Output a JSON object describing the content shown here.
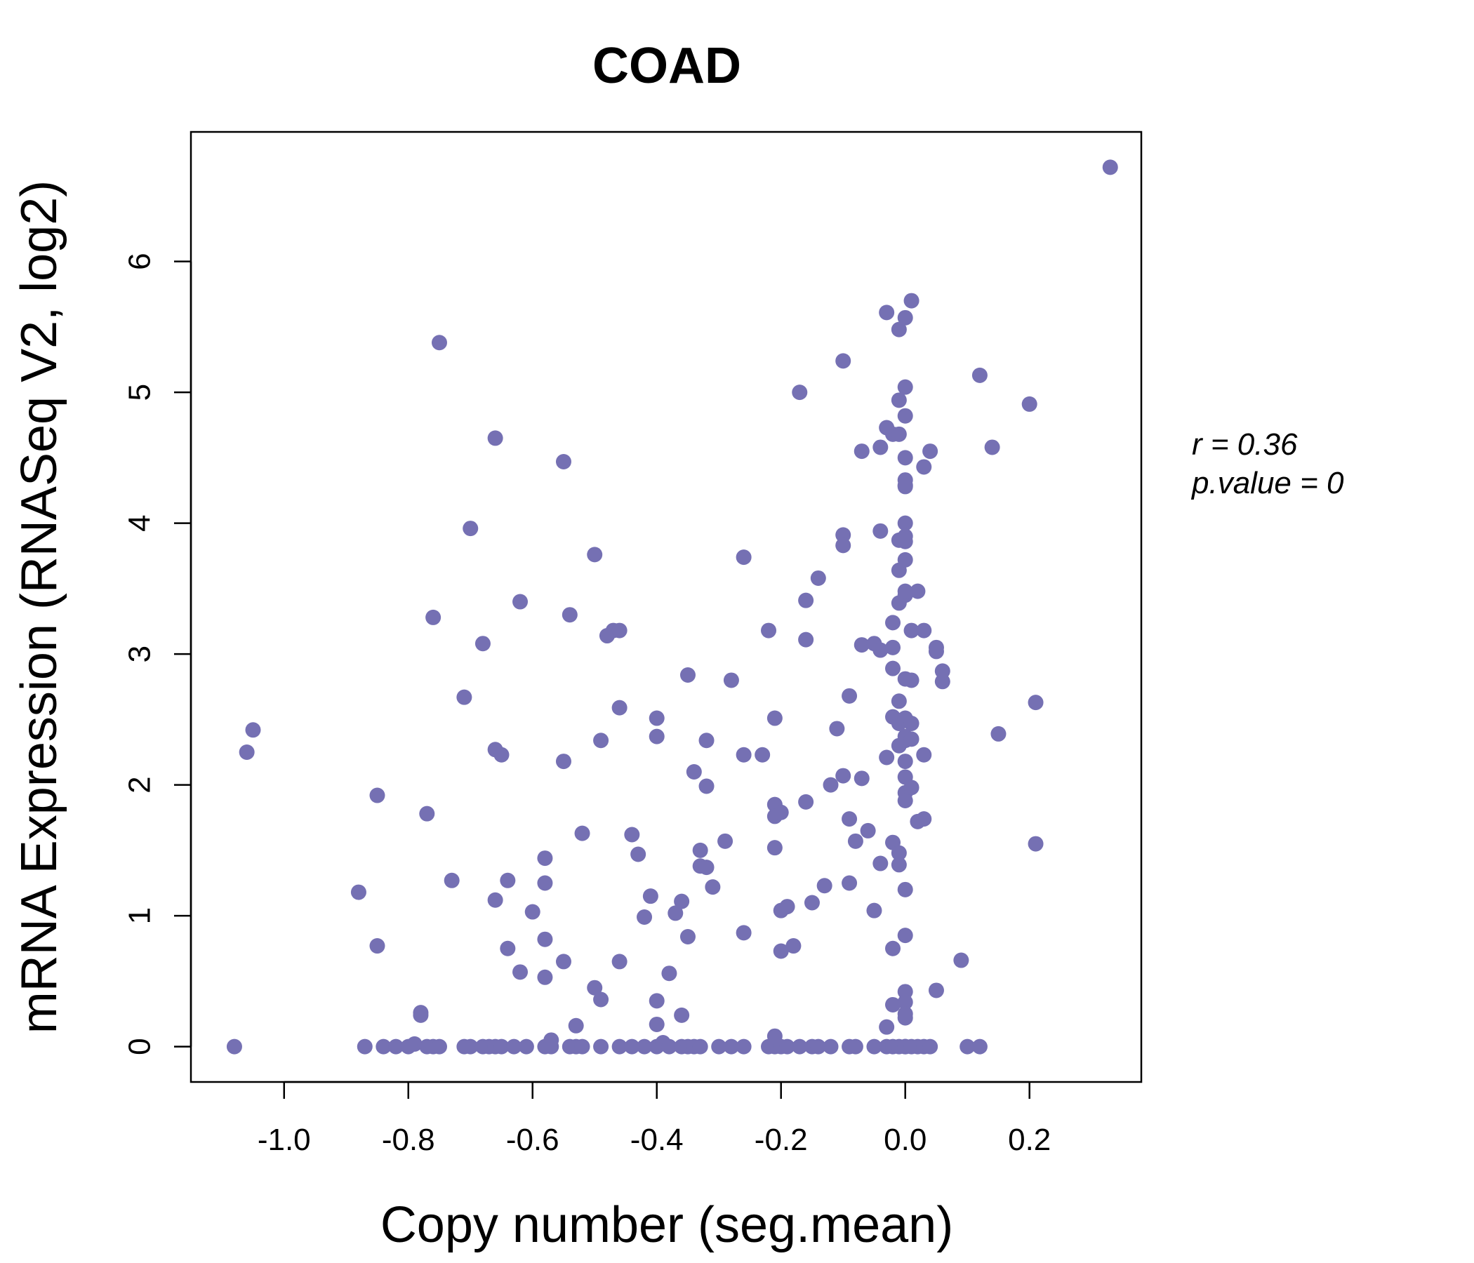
{
  "chart_data": {
    "type": "scatter",
    "title": "COAD",
    "xlabel": "Copy number (seg.mean)",
    "ylabel": "mRNA Expression (RNASeq V2, log2)",
    "xlim": [
      -1.15,
      0.38
    ],
    "ylim": [
      -0.27,
      6.99
    ],
    "x_ticks": [
      -1.0,
      -0.8,
      -0.6,
      -0.4,
      -0.2,
      0.0,
      0.2
    ],
    "x_tick_labels": [
      "-1.0",
      "-0.8",
      "-0.6",
      "-0.4",
      "-0.2",
      "0.0",
      "0.2"
    ],
    "y_ticks": [
      0,
      1,
      2,
      3,
      4,
      5,
      6
    ],
    "y_tick_labels": [
      "0",
      "1",
      "2",
      "3",
      "4",
      "5",
      "6"
    ],
    "grid": false,
    "point_color": "#7570B3",
    "annotations": {
      "r_label": "r = 0.36",
      "p_label": "p.value = 0"
    },
    "points": [
      [
        -1.08,
        0.0
      ],
      [
        -1.06,
        2.25
      ],
      [
        -1.05,
        2.42
      ],
      [
        -0.88,
        1.18
      ],
      [
        -0.87,
        0.0
      ],
      [
        -0.85,
        1.92
      ],
      [
        -0.85,
        0.77
      ],
      [
        -0.84,
        0.0
      ],
      [
        -0.82,
        0.0
      ],
      [
        -0.8,
        0.0
      ],
      [
        -0.79,
        0.02
      ],
      [
        -0.78,
        0.24
      ],
      [
        -0.78,
        0.26
      ],
      [
        -0.77,
        0.0
      ],
      [
        -0.77,
        1.78
      ],
      [
        -0.76,
        0.0
      ],
      [
        -0.76,
        3.28
      ],
      [
        -0.75,
        5.38
      ],
      [
        -0.75,
        0.0
      ],
      [
        -0.73,
        1.27
      ],
      [
        -0.71,
        2.67
      ],
      [
        -0.71,
        0.0
      ],
      [
        -0.7,
        3.96
      ],
      [
        -0.7,
        0.0
      ],
      [
        -0.68,
        3.08
      ],
      [
        -0.68,
        0.0
      ],
      [
        -0.67,
        0.0
      ],
      [
        -0.66,
        4.65
      ],
      [
        -0.66,
        2.27
      ],
      [
        -0.66,
        1.12
      ],
      [
        -0.66,
        0.0
      ],
      [
        -0.65,
        2.23
      ],
      [
        -0.65,
        0.0
      ],
      [
        -0.64,
        1.27
      ],
      [
        -0.64,
        0.75
      ],
      [
        -0.63,
        0.0
      ],
      [
        -0.62,
        3.4
      ],
      [
        -0.62,
        0.57
      ],
      [
        -0.61,
        0.0
      ],
      [
        -0.6,
        1.03
      ],
      [
        -0.58,
        1.44
      ],
      [
        -0.58,
        1.25
      ],
      [
        -0.58,
        0.82
      ],
      [
        -0.58,
        0.53
      ],
      [
        -0.58,
        0.0
      ],
      [
        -0.57,
        0.05
      ],
      [
        -0.57,
        0.0
      ],
      [
        -0.55,
        4.47
      ],
      [
        -0.55,
        2.18
      ],
      [
        -0.55,
        0.65
      ],
      [
        -0.54,
        3.3
      ],
      [
        -0.54,
        0.0
      ],
      [
        -0.53,
        0.16
      ],
      [
        -0.53,
        0.0
      ],
      [
        -0.52,
        1.63
      ],
      [
        -0.52,
        0.0
      ],
      [
        -0.5,
        3.76
      ],
      [
        -0.5,
        0.45
      ],
      [
        -0.49,
        2.34
      ],
      [
        -0.49,
        0.36
      ],
      [
        -0.49,
        0.0
      ],
      [
        -0.48,
        3.14
      ],
      [
        -0.47,
        3.18
      ],
      [
        -0.46,
        3.18
      ],
      [
        -0.46,
        2.59
      ],
      [
        -0.46,
        0.65
      ],
      [
        -0.46,
        0.0
      ],
      [
        -0.44,
        1.62
      ],
      [
        -0.44,
        0.0
      ],
      [
        -0.43,
        1.47
      ],
      [
        -0.42,
        0.99
      ],
      [
        -0.42,
        0.0
      ],
      [
        -0.41,
        1.15
      ],
      [
        -0.4,
        0.35
      ],
      [
        -0.4,
        0.17
      ],
      [
        -0.4,
        2.37
      ],
      [
        -0.4,
        2.51
      ],
      [
        -0.4,
        0.0
      ],
      [
        -0.39,
        0.03
      ],
      [
        -0.38,
        0.56
      ],
      [
        -0.38,
        0.0
      ],
      [
        -0.37,
        1.02
      ],
      [
        -0.36,
        0.24
      ],
      [
        -0.36,
        1.11
      ],
      [
        -0.36,
        0.0
      ],
      [
        -0.35,
        2.84
      ],
      [
        -0.35,
        0.84
      ],
      [
        -0.35,
        0.0
      ],
      [
        -0.34,
        2.1
      ],
      [
        -0.34,
        0.0
      ],
      [
        -0.33,
        1.5
      ],
      [
        -0.33,
        1.38
      ],
      [
        -0.33,
        0.0
      ],
      [
        -0.32,
        1.37
      ],
      [
        -0.32,
        1.99
      ],
      [
        -0.32,
        2.34
      ],
      [
        -0.31,
        1.22
      ],
      [
        -0.3,
        0.0
      ],
      [
        -0.29,
        1.57
      ],
      [
        -0.28,
        2.8
      ],
      [
        -0.28,
        0.0
      ],
      [
        -0.26,
        3.74
      ],
      [
        -0.26,
        2.23
      ],
      [
        -0.26,
        0.87
      ],
      [
        -0.26,
        0.0
      ],
      [
        -0.23,
        2.23
      ],
      [
        -0.22,
        3.18
      ],
      [
        -0.22,
        0.0
      ],
      [
        -0.21,
        2.51
      ],
      [
        -0.21,
        0.08
      ],
      [
        -0.21,
        1.85
      ],
      [
        -0.21,
        1.76
      ],
      [
        -0.21,
        1.52
      ],
      [
        -0.21,
        0.0
      ],
      [
        -0.2,
        1.79
      ],
      [
        -0.2,
        0.73
      ],
      [
        -0.2,
        1.04
      ],
      [
        -0.2,
        0.0
      ],
      [
        -0.19,
        1.07
      ],
      [
        -0.19,
        0.0
      ],
      [
        -0.18,
        0.77
      ],
      [
        -0.17,
        5.0
      ],
      [
        -0.17,
        0.0
      ],
      [
        -0.16,
        3.41
      ],
      [
        -0.16,
        3.11
      ],
      [
        -0.16,
        1.87
      ],
      [
        -0.15,
        1.1
      ],
      [
        -0.15,
        0.0
      ],
      [
        -0.14,
        3.58
      ],
      [
        -0.14,
        0.0
      ],
      [
        -0.13,
        1.23
      ],
      [
        -0.12,
        2.0
      ],
      [
        -0.12,
        0.0
      ],
      [
        -0.11,
        2.43
      ],
      [
        -0.1,
        5.24
      ],
      [
        -0.1,
        3.91
      ],
      [
        -0.1,
        3.83
      ],
      [
        -0.1,
        2.07
      ],
      [
        -0.09,
        2.68
      ],
      [
        -0.09,
        1.74
      ],
      [
        -0.09,
        1.25
      ],
      [
        -0.09,
        0.0
      ],
      [
        -0.08,
        1.57
      ],
      [
        -0.08,
        0.0
      ],
      [
        -0.07,
        4.55
      ],
      [
        -0.07,
        3.07
      ],
      [
        -0.07,
        2.05
      ],
      [
        -0.06,
        1.65
      ],
      [
        -0.05,
        3.08
      ],
      [
        -0.05,
        1.04
      ],
      [
        -0.05,
        0.0
      ],
      [
        -0.04,
        4.58
      ],
      [
        -0.04,
        3.94
      ],
      [
        -0.04,
        3.03
      ],
      [
        -0.04,
        1.4
      ],
      [
        -0.03,
        5.61
      ],
      [
        -0.03,
        4.73
      ],
      [
        -0.03,
        2.21
      ],
      [
        -0.03,
        0.15
      ],
      [
        -0.03,
        0.0
      ],
      [
        -0.02,
        4.68
      ],
      [
        -0.02,
        3.24
      ],
      [
        -0.02,
        2.52
      ],
      [
        -0.02,
        0.75
      ],
      [
        -0.02,
        0.32
      ],
      [
        -0.02,
        3.05
      ],
      [
        -0.02,
        2.89
      ],
      [
        -0.02,
        1.56
      ],
      [
        -0.02,
        0.0
      ],
      [
        -0.01,
        5.48
      ],
      [
        -0.01,
        4.94
      ],
      [
        -0.01,
        4.68
      ],
      [
        -0.01,
        3.87
      ],
      [
        -0.01,
        3.64
      ],
      [
        -0.01,
        3.39
      ],
      [
        -0.01,
        2.64
      ],
      [
        -0.01,
        2.47
      ],
      [
        -0.01,
        2.3
      ],
      [
        -0.01,
        1.48
      ],
      [
        -0.01,
        1.39
      ],
      [
        -0.01,
        0.0
      ],
      [
        0.0,
        5.04
      ],
      [
        0.0,
        4.29
      ],
      [
        0.0,
        4.33
      ],
      [
        0.0,
        4.0
      ],
      [
        0.0,
        3.86
      ],
      [
        0.0,
        3.72
      ],
      [
        0.0,
        3.45
      ],
      [
        0.0,
        2.51
      ],
      [
        0.0,
        2.34
      ],
      [
        0.0,
        1.94
      ],
      [
        0.0,
        0.42
      ],
      [
        0.0,
        0.34
      ],
      [
        0.0,
        0.25
      ],
      [
        0.0,
        0.22
      ],
      [
        0.0,
        0.0
      ],
      [
        0.0,
        4.82
      ],
      [
        0.0,
        3.9
      ],
      [
        0.0,
        2.37
      ],
      [
        0.0,
        2.18
      ],
      [
        0.0,
        0.0
      ],
      [
        0.0,
        5.57
      ],
      [
        0.0,
        4.5
      ],
      [
        0.0,
        4.28
      ],
      [
        0.0,
        3.48
      ],
      [
        0.0,
        2.81
      ],
      [
        0.0,
        2.06
      ],
      [
        0.0,
        1.88
      ],
      [
        0.0,
        1.2
      ],
      [
        0.0,
        0.85
      ],
      [
        0.0,
        0.0
      ],
      [
        0.01,
        5.7
      ],
      [
        0.01,
        3.18
      ],
      [
        0.01,
        2.47
      ],
      [
        0.01,
        2.8
      ],
      [
        0.01,
        2.35
      ],
      [
        0.01,
        1.98
      ],
      [
        0.01,
        0.0
      ],
      [
        0.02,
        3.48
      ],
      [
        0.02,
        1.72
      ],
      [
        0.02,
        0.0
      ],
      [
        0.03,
        4.43
      ],
      [
        0.03,
        3.18
      ],
      [
        0.03,
        2.23
      ],
      [
        0.03,
        1.74
      ],
      [
        0.03,
        0.0
      ],
      [
        0.04,
        4.55
      ],
      [
        0.04,
        0.0
      ],
      [
        0.05,
        3.05
      ],
      [
        0.05,
        3.02
      ],
      [
        0.05,
        0.43
      ],
      [
        0.06,
        2.87
      ],
      [
        0.06,
        2.79
      ],
      [
        0.09,
        0.66
      ],
      [
        0.1,
        0.0
      ],
      [
        0.12,
        5.13
      ],
      [
        0.12,
        0.0
      ],
      [
        0.14,
        4.58
      ],
      [
        0.15,
        2.39
      ],
      [
        0.2,
        4.91
      ],
      [
        0.21,
        1.55
      ],
      [
        0.21,
        2.63
      ],
      [
        0.33,
        6.72
      ]
    ]
  }
}
